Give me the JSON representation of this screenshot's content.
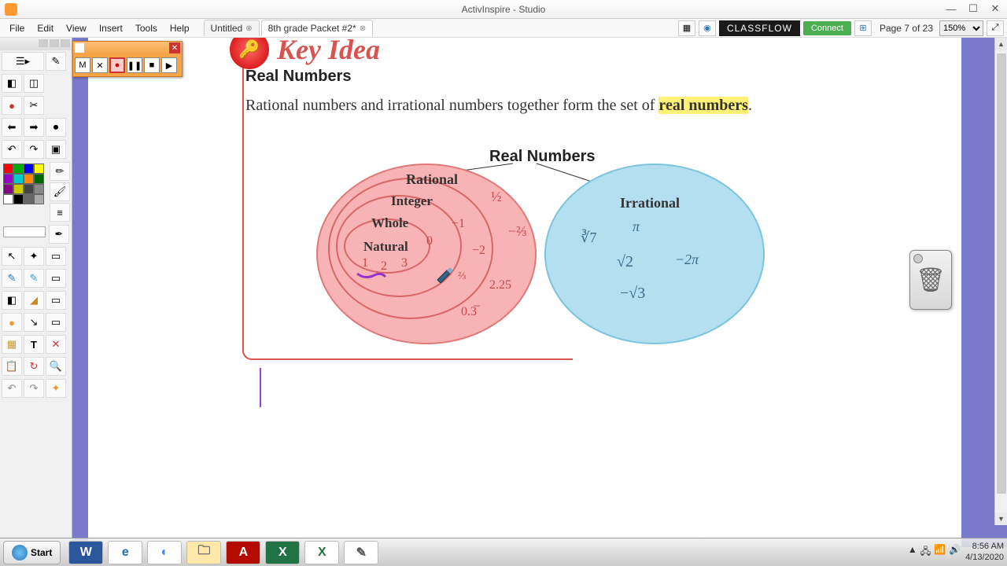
{
  "titlebar": {
    "title": "ActivInspire - Studio"
  },
  "menu": [
    "File",
    "Edit",
    "View",
    "Insert",
    "Tools",
    "Help"
  ],
  "tabs": [
    {
      "label": "Untitled"
    },
    {
      "label": "8th grade Packet #2*"
    }
  ],
  "classflow": {
    "brand": "CLASSFLOW",
    "connect": "Connect"
  },
  "pager": {
    "label": "Page 7 of 23",
    "zoom": "150%"
  },
  "key_idea": {
    "heading": "Key Idea"
  },
  "section": {
    "title": "Real Numbers",
    "body_prefix": "Rational numbers and irrational numbers together form the set of ",
    "body_highlight": "real numbers",
    "body_suffix": "."
  },
  "diagram": {
    "title": "Real Numbers",
    "rational": {
      "label": "Rational",
      "color": "#f8b4b4",
      "border": "#e07878",
      "nested": {
        "integer": "Integer",
        "whole": "Whole",
        "natural": "Natural"
      },
      "numbers": {
        "natural_vals": [
          "1",
          "2",
          "3"
        ],
        "whole_extra": "0",
        "integer_extra": "−1",
        "rational_extra": [
          "½",
          "−⅔",
          "2.25",
          "0.3̅"
        ],
        "near_cursor_a": "−2",
        "near_cursor_b": "⅔"
      }
    },
    "irrational": {
      "label": "Irrational",
      "color": "#b3dff0",
      "border": "#7bc4de",
      "numbers": [
        "∛7",
        "π",
        "√2",
        "−2π",
        "−√3"
      ]
    }
  },
  "recorder": {
    "buttons": {
      "menu": "M",
      "close_small": "✕",
      "record": "●",
      "pause": "❚❚",
      "stop": "■",
      "play": "▶"
    }
  },
  "toolbox_colors": [
    "#ff0000",
    "#00aa00",
    "#0000ff",
    "#ffff00",
    "#9900cc",
    "#00cccc",
    "#ff8800",
    "#006600",
    "#880088",
    "#cccc00",
    "#444444",
    "#888888",
    "#ffffff",
    "#000000",
    "#666666",
    "#aaaaaa"
  ],
  "taskbar": {
    "start": "Start",
    "apps": [
      {
        "name": "word-icon",
        "glyph": "W",
        "bg": "#2b579a",
        "fg": "#ffffff"
      },
      {
        "name": "ie-icon",
        "glyph": "e",
        "bg": "#ffffff",
        "fg": "#1e6bb8"
      },
      {
        "name": "chrome-icon",
        "glyph": "◐",
        "bg": "#ffffff",
        "fg": "#4285f4"
      },
      {
        "name": "explorer-icon",
        "glyph": "🗀",
        "bg": "#ffe9a8",
        "fg": "#555555"
      },
      {
        "name": "adobe-icon",
        "glyph": "A",
        "bg": "#b30b00",
        "fg": "#ffffff"
      },
      {
        "name": "excel-icon",
        "glyph": "X",
        "bg": "#217346",
        "fg": "#ffffff"
      },
      {
        "name": "excel2-icon",
        "glyph": "X",
        "bg": "#ffffff",
        "fg": "#217346"
      },
      {
        "name": "activ-icon",
        "glyph": "✎",
        "bg": "#ffffff",
        "fg": "#555555"
      }
    ],
    "time": "8:56 AM",
    "date": "4/13/2020"
  }
}
